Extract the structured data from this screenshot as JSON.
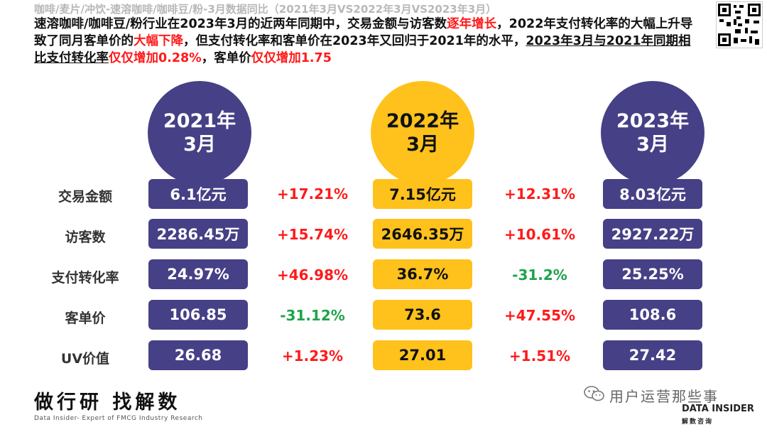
{
  "header": {
    "subtitle": "咖啡/麦片/冲饮-速溶咖啡/咖啡豆/粉-3月数据同比（2021年3月VS2022年3月VS2023年3月）",
    "summary": {
      "p1": "速溶咖啡/咖啡豆/粉行业在2023年3月的近两年同期中，交易金额与访客数",
      "p1_red": "逐年增长",
      "p2": "，2022年支付转化率的大幅上升导致了同月客单价的",
      "p2_red": "大幅下降",
      "p3": "，但支付转化率和客单价在2023年又回归于2021年的水平，",
      "p4_ul": "2023年3月与2021年同期相比支付转化率",
      "p4_red": "仅仅增加0.28%",
      "p5": "，客单价",
      "p5_red": "仅仅增加1.75"
    }
  },
  "periods": [
    {
      "line1": "2021年",
      "line2": "3月"
    },
    {
      "line1": "2022年",
      "line2": "3月"
    },
    {
      "line1": "2023年",
      "line2": "3月"
    }
  ],
  "metrics": [
    {
      "label": "交易金额",
      "v2021": "6.1亿元",
      "chg1": "+17.21%",
      "v2022": "7.15亿元",
      "chg2": "+12.31%",
      "v2023": "8.03亿元"
    },
    {
      "label": "访客数",
      "v2021": "2286.45万",
      "chg1": "+15.74%",
      "v2022": "2646.35万",
      "chg2": "+10.61%",
      "v2023": "2927.22万"
    },
    {
      "label": "支付转化率",
      "v2021": "24.97%",
      "chg1": "+46.98%",
      "v2022": "36.7%",
      "chg2": "-31.2%",
      "v2023": "25.25%"
    },
    {
      "label": "客单价",
      "v2021": "106.85",
      "chg1": "-31.12%",
      "v2022": "73.6",
      "chg2": "+47.55%",
      "v2023": "108.6"
    },
    {
      "label": "UV价值",
      "v2021": "26.68",
      "chg1": "+1.23%",
      "v2022": "27.01",
      "chg2": "+1.51%",
      "v2023": "27.42"
    }
  ],
  "footer": {
    "brand_cn": "做行研 找解数",
    "brand_en": "Data Insider- Expert of FMCG Industry Research",
    "wechat_name": "用户运营那些事",
    "logo_en": "DATA INSIDER",
    "logo_cn": "解数咨询"
  },
  "colors": {
    "purple": "#464086",
    "yellow": "#ffc21c",
    "increase": "#ff1a1a",
    "decrease": "#1fa34a"
  },
  "icons": [
    "qr-code-icon",
    "wechat-icon"
  ]
}
